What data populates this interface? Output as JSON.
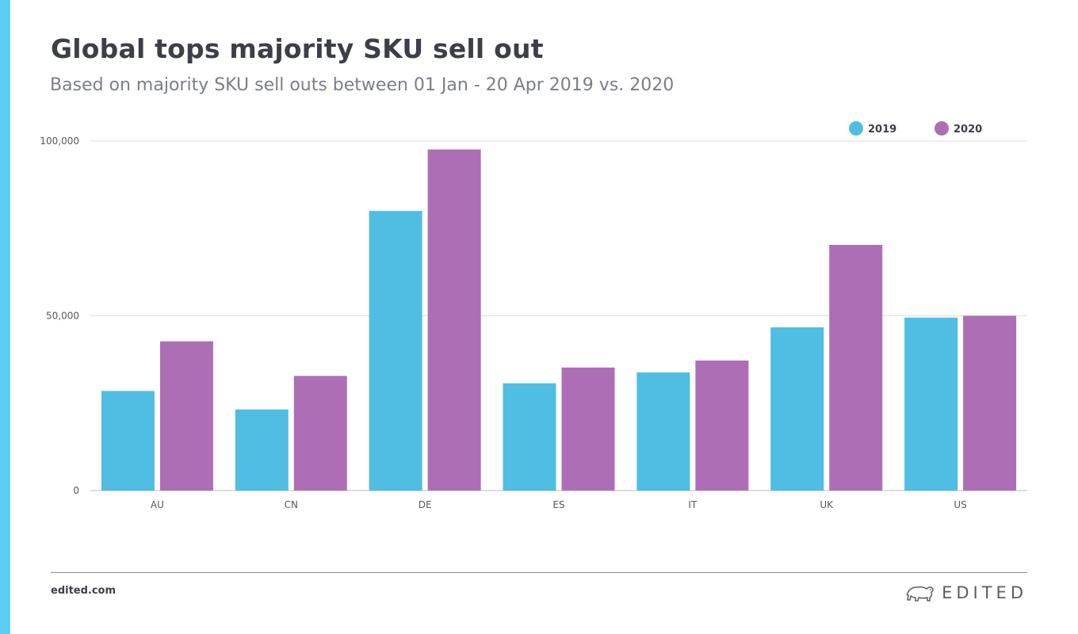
{
  "header": {
    "title": "Global tops majority SKU sell out",
    "subtitle": "Based on majority SKU sell outs between 01 Jan - 20 Apr 2019 vs. 2020"
  },
  "footer": {
    "site": "edited.com",
    "brand": "EDITED",
    "brand_icon": "polar-bear-icon"
  },
  "colors": {
    "accent": "#5ccef3",
    "series_2019": "#50bde2",
    "series_2020": "#ae6eb6",
    "gridline": "#dcdde0",
    "axis_text": "#55575e"
  },
  "chart_data": {
    "type": "bar",
    "categories": [
      "AU",
      "CN",
      "DE",
      "ES",
      "IT",
      "UK",
      "US"
    ],
    "series": [
      {
        "name": "2019",
        "values": [
          28500,
          23200,
          80000,
          30700,
          33800,
          46700,
          49500
        ]
      },
      {
        "name": "2020",
        "values": [
          42700,
          32800,
          97600,
          35200,
          37200,
          70300,
          50000
        ]
      }
    ],
    "yticks": [
      0,
      50000,
      100000
    ],
    "ytick_labels": [
      "0",
      "50,000",
      "100,000"
    ],
    "ylim": [
      0,
      100000
    ],
    "legend": "top-right",
    "grid": true,
    "xlabel": "",
    "ylabel": ""
  }
}
